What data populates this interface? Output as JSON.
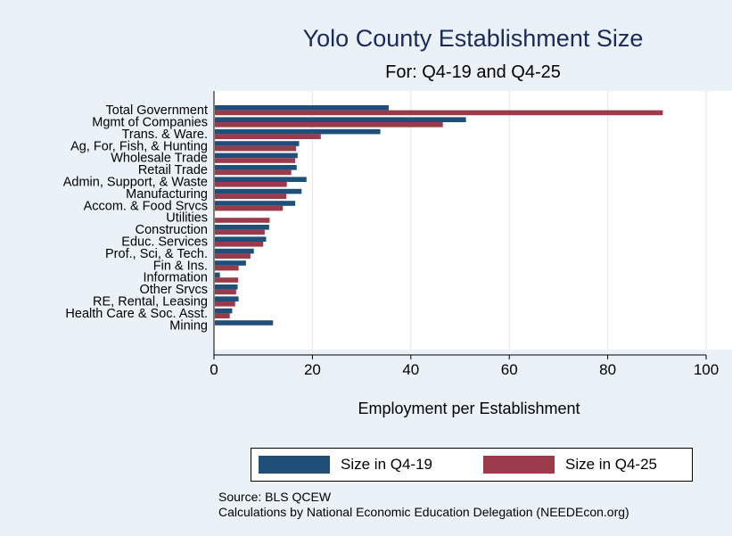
{
  "chart_data": {
    "type": "bar",
    "orientation": "horizontal",
    "title": "Yolo County Establishment Size",
    "subtitle": "For: Q4-19 and Q4-25",
    "xlabel": "Employment per Establishment",
    "ylabel": "",
    "xlim": [
      0,
      100
    ],
    "xticks": [
      0,
      20,
      40,
      60,
      80,
      100
    ],
    "grid": "vertical",
    "legend_position": "bottom",
    "categories": [
      "Total Government",
      "Mgmt of Companies",
      "Trans. & Ware.",
      "Ag, For, Fish, & Hunting",
      "Wholesale Trade",
      "Retail Trade",
      "Admin, Support, & Waste",
      "Manufacturing",
      "Accom. & Food Srvcs",
      "Utilities",
      "Construction",
      "Educ. Services",
      "Prof., Sci, & Tech.",
      "Fin & Ins.",
      "Information",
      "Other Srvcs",
      "RE, Rental, Leasing",
      "Health Care & Soc. Asst.",
      "Mining"
    ],
    "series": [
      {
        "name": "Size in Q4-19",
        "color": "#1f4e79",
        "values": [
          35.5,
          51.2,
          33.8,
          17.3,
          17.0,
          16.8,
          18.8,
          17.8,
          16.5,
          null,
          11.2,
          10.6,
          8.1,
          6.5,
          1.2,
          4.8,
          5.0,
          3.7,
          12.0
        ]
      },
      {
        "name": "Size in Q4-25",
        "color": "#9b3a4a",
        "values": [
          91.2,
          46.5,
          21.7,
          16.7,
          16.5,
          15.7,
          14.8,
          14.7,
          14.0,
          11.3,
          10.3,
          10.0,
          7.4,
          5.0,
          4.9,
          4.5,
          4.3,
          3.2,
          null
        ]
      }
    ]
  },
  "source": "Source: BLS QCEW",
  "credit": "Calculations by National Economic Education Delegation (NEEDEcon.org)"
}
